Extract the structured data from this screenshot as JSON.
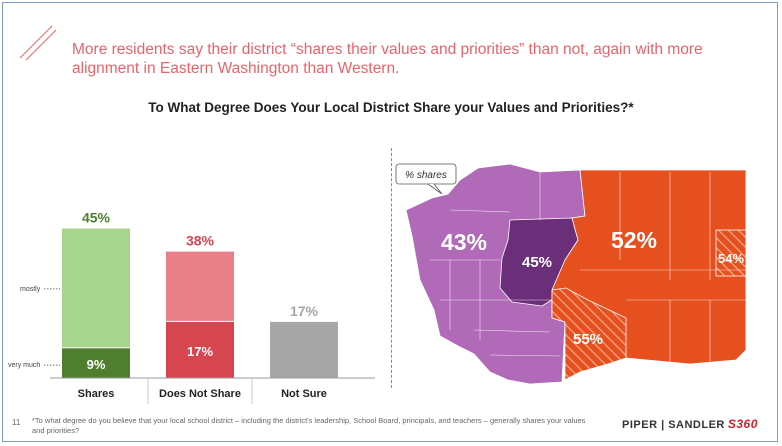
{
  "headline": "More residents say their district “shares their values and priorities” than not, again with more alignment in Eastern Washington than Western.",
  "subtitle": "To What Degree Does Your Local District Share your Values and Priorities?*",
  "chart_data": {
    "type": "bar",
    "stacked": true,
    "categories": [
      "Shares",
      "Does Not Share",
      "Not Sure"
    ],
    "totals": [
      "45%",
      "38%",
      "17%"
    ],
    "segment_labels": {
      "top": "mostly",
      "bottom": "very much"
    },
    "series": [
      {
        "segment": "bottom",
        "values": [
          9,
          17,
          17
        ],
        "labels": [
          "9%",
          "17%",
          ""
        ]
      },
      {
        "segment": "top",
        "values": [
          36,
          21,
          0
        ],
        "labels": [
          "",
          "",
          ""
        ]
      }
    ],
    "colors": {
      "shares_top": "#a8d58e",
      "shares_bottom": "#4f7f2e",
      "notshare_top": "#e78088",
      "notshare_bottom": "#d64651",
      "notsure": "#a6a6a6",
      "total_shares": "#4f7f2e",
      "total_notshare": "#d64651",
      "total_notsure": "#a6a6a6"
    },
    "ylim": [
      0,
      50
    ]
  },
  "map": {
    "callout": "% shares",
    "regions": [
      {
        "label": "43%",
        "color": "#b16ab8"
      },
      {
        "label": "45%",
        "color": "#6b2f7a"
      },
      {
        "label": "52%",
        "color": "#e6501e"
      },
      {
        "label": "54%",
        "color": "#e6501e",
        "hatched": true
      },
      {
        "label": "55%",
        "color": "#e6501e",
        "hatched": true
      }
    ]
  },
  "footer": {
    "page": "11",
    "footnote": "*To what degree do you believe that your local school district – including the district's leadership, School Board, principals, and teachers – generally shares your values and priorities?",
    "logo_main": "PIPER | SANDLER",
    "logo_accent": "S360"
  }
}
